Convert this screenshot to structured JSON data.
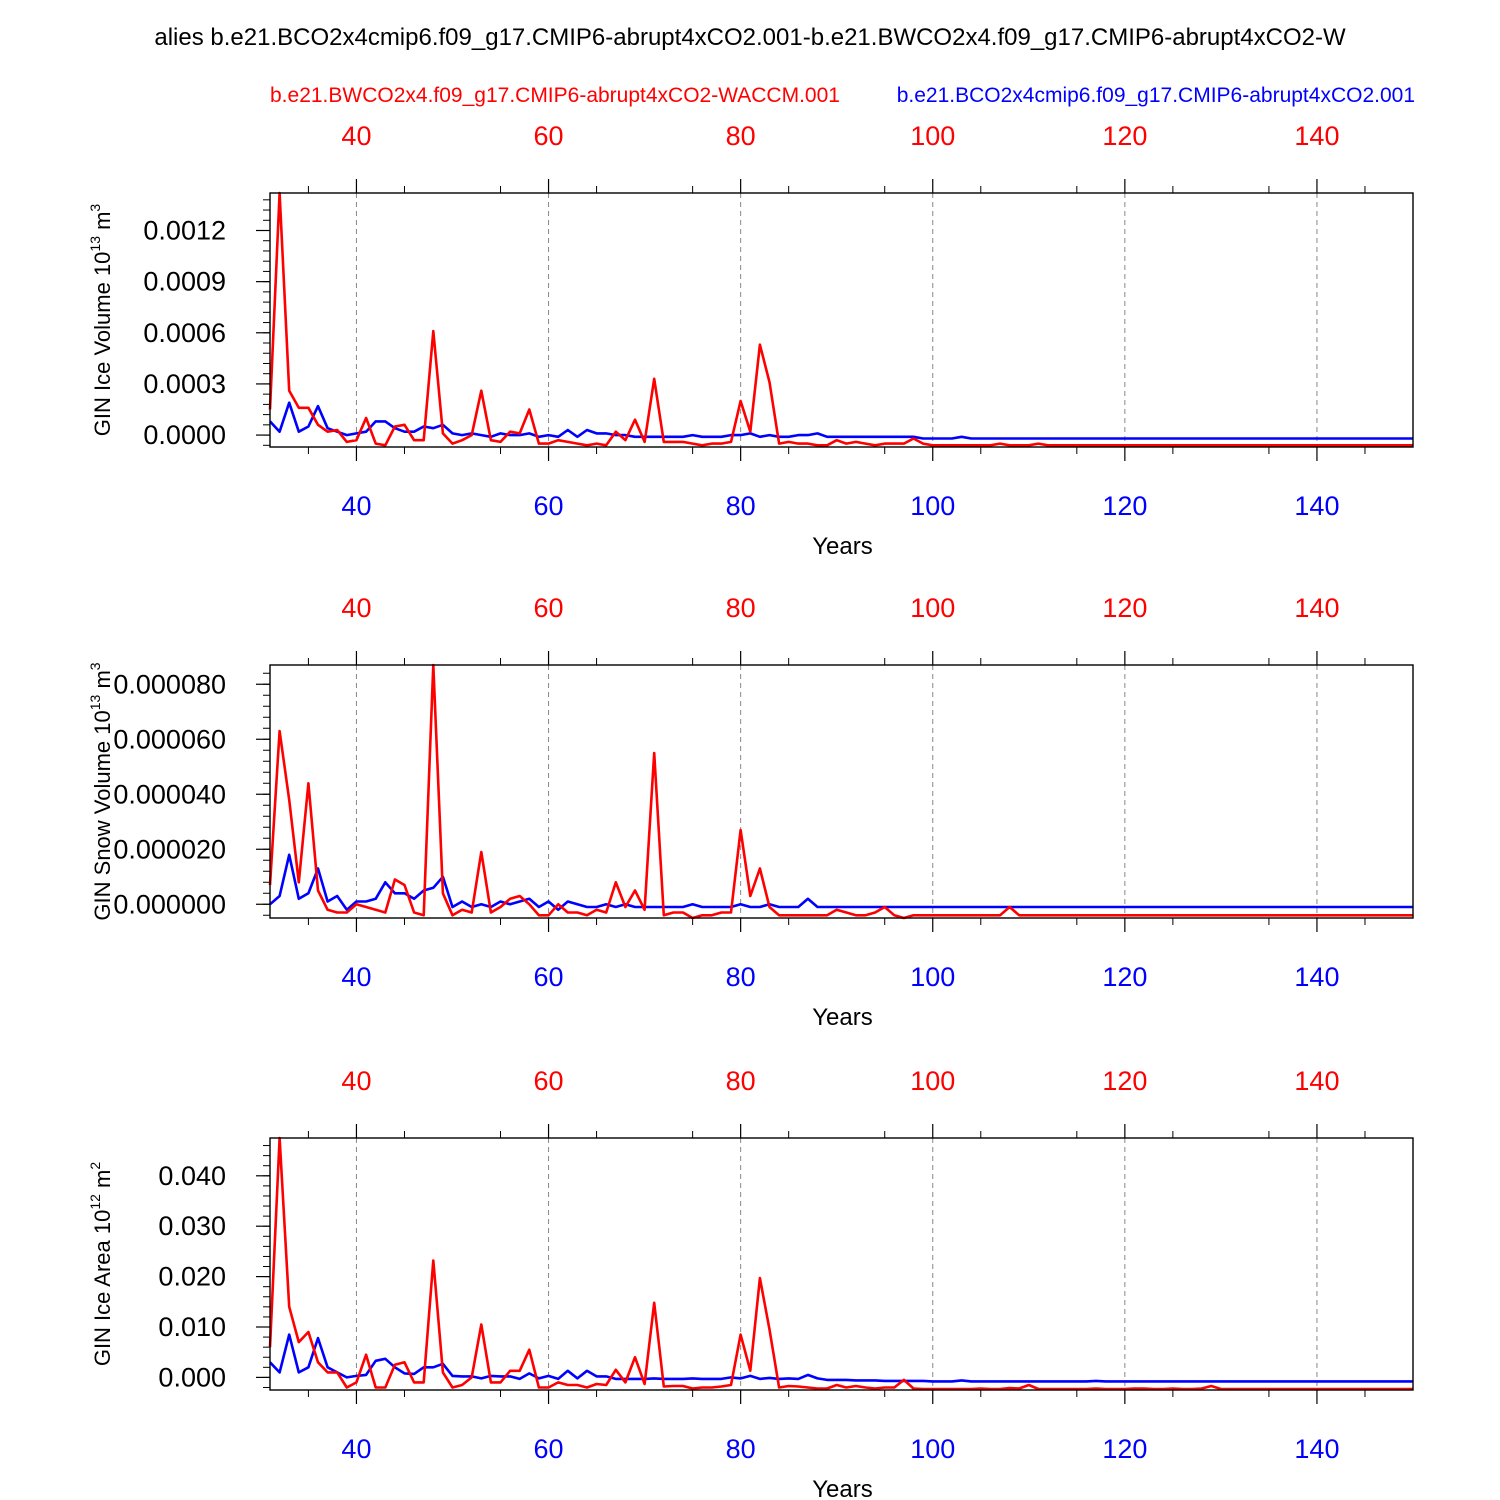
{
  "figure": {
    "title": "alies b.e21.BCO2x4cmip6.f09_g17.CMIP6-abrupt4xCO2.001-b.e21.BWCO2x4.f09_g17.CMIP6-abrupt4xCO2-W",
    "legend_red": "b.e21.BWCO2x4.f09_g17.CMIP6-abrupt4xCO2-WACCM.001",
    "legend_blue": "b.e21.BCO2x4cmip6.f09_g17.CMIP6-abrupt4xCO2.001"
  },
  "colors": {
    "red": "#ff0000",
    "blue": "#0000ff",
    "text": "#000000",
    "grid": "#888888"
  },
  "chart_data": [
    {
      "type": "line",
      "ylabel": "GIN Ice Volume",
      "ylabel_unit_base": "10",
      "ylabel_unit_exp": "13",
      "ylabel_unit_tail": "m",
      "ylabel_unit_pow": "3",
      "xlabel": "Years",
      "xlim": [
        31,
        150
      ],
      "ylim": [
        -7e-05,
        0.00142
      ],
      "x_ticks": [
        "40",
        "60",
        "80",
        "100",
        "120",
        "140"
      ],
      "y_ticks": [
        {
          "v": 0.0,
          "label": "0.0000"
        },
        {
          "v": 0.0003,
          "label": "0.0003"
        },
        {
          "v": 0.0006,
          "label": "0.0006"
        },
        {
          "v": 0.0009,
          "label": "0.0009"
        },
        {
          "v": 0.0012,
          "label": "0.0012"
        }
      ],
      "grid_x": true,
      "series": [
        {
          "color": "red",
          "start_x": 31,
          "values": [
            0.00015,
            0.00142,
            0.00026,
            0.00016,
            0.00016,
            6e-05,
            2e-05,
            3e-05,
            -4e-05,
            -3e-05,
            0.0001,
            -5e-05,
            -6e-05,
            5e-05,
            6e-05,
            -3e-05,
            -3e-05,
            0.00061,
            1e-05,
            -5e-05,
            -3e-05,
            0.0,
            0.00026,
            -3e-05,
            -4e-05,
            2e-05,
            1e-05,
            0.00015,
            -5e-05,
            -5e-05,
            -3e-05,
            -4e-05,
            -5e-05,
            -6e-05,
            -5e-05,
            -6e-05,
            2e-05,
            -3e-05,
            9e-05,
            -4e-05,
            0.00033,
            -4e-05,
            -4e-05,
            -4e-05,
            -5e-05,
            -6e-05,
            -5e-05,
            -5e-05,
            -4e-05,
            0.0002,
            2e-05,
            0.00053,
            0.00031,
            -5e-05,
            -4e-05,
            -5e-05,
            -5e-05,
            -6e-05,
            -6e-05,
            -3e-05,
            -5e-05,
            -4e-05,
            -5e-05,
            -6e-05,
            -5e-05,
            -5e-05,
            -5e-05,
            -2e-05,
            -5e-05,
            -6e-05,
            -6e-05,
            -6e-05,
            -6e-05,
            -6e-05,
            -6e-05,
            -6e-05,
            -5e-05,
            -6e-05,
            -6e-05,
            -6e-05,
            -5e-05,
            -6e-05,
            -6e-05,
            -6e-05,
            -6e-05,
            -6e-05,
            -6e-05,
            -6e-05,
            -6e-05,
            -6e-05,
            -6e-05,
            -6e-05,
            -6e-05,
            -6e-05,
            -6e-05,
            -6e-05,
            -6e-05,
            -6e-05,
            -6e-05,
            -6e-05,
            -6e-05,
            -6e-05,
            -6e-05,
            -6e-05,
            -6e-05,
            -6e-05,
            -6e-05,
            -6e-05,
            -6e-05,
            -6e-05,
            -6e-05,
            -6e-05,
            -6e-05,
            -6e-05,
            -6e-05,
            -6e-05,
            -6e-05,
            -6e-05,
            -6e-05,
            -6e-05
          ]
        },
        {
          "color": "blue",
          "start_x": 31,
          "values": [
            8e-05,
            2e-05,
            0.00019,
            2e-05,
            5e-05,
            0.00017,
            4e-05,
            2e-05,
            0.0,
            1e-05,
            2e-05,
            8e-05,
            8e-05,
            4e-05,
            2e-05,
            2e-05,
            5e-05,
            4e-05,
            6e-05,
            1e-05,
            0.0,
            1e-05,
            0.0,
            -1e-05,
            1e-05,
            0.0,
            0.0,
            1e-05,
            -1e-05,
            0.0,
            -1e-05,
            3e-05,
            -1e-05,
            3e-05,
            1e-05,
            1e-05,
            0.0,
            0.0,
            -1e-05,
            -1e-05,
            -1e-05,
            -1e-05,
            -1e-05,
            -1e-05,
            0.0,
            -1e-05,
            -1e-05,
            -1e-05,
            0.0,
            0.0,
            1e-05,
            -1e-05,
            0.0,
            -1e-05,
            -1e-05,
            0.0,
            0.0,
            1e-05,
            -1e-05,
            -1e-05,
            -1e-05,
            -1e-05,
            -1e-05,
            -1e-05,
            -1e-05,
            -1e-05,
            -1e-05,
            -1e-05,
            -2e-05,
            -2e-05,
            -2e-05,
            -2e-05,
            -1e-05,
            -2e-05,
            -2e-05,
            -2e-05,
            -2e-05,
            -2e-05,
            -2e-05,
            -2e-05,
            -2e-05,
            -2e-05,
            -2e-05,
            -2e-05,
            -2e-05,
            -2e-05,
            -2e-05,
            -2e-05,
            -2e-05,
            -2e-05,
            -2e-05,
            -2e-05,
            -2e-05,
            -2e-05,
            -2e-05,
            -2e-05,
            -2e-05,
            -2e-05,
            -2e-05,
            -2e-05,
            -2e-05,
            -2e-05,
            -2e-05,
            -2e-05,
            -2e-05,
            -2e-05,
            -2e-05,
            -2e-05,
            -2e-05,
            -2e-05,
            -2e-05,
            -2e-05,
            -2e-05,
            -2e-05,
            -2e-05,
            -2e-05,
            -2e-05,
            -2e-05,
            -2e-05,
            -2e-05
          ]
        }
      ]
    },
    {
      "type": "line",
      "ylabel": "GIN Snow Volume",
      "ylabel_unit_base": "10",
      "ylabel_unit_exp": "13",
      "ylabel_unit_tail": "m",
      "ylabel_unit_pow": "3",
      "xlabel": "Years",
      "xlim": [
        31,
        150
      ],
      "ylim": [
        -5e-06,
        8.7e-05
      ],
      "x_ticks": [
        "40",
        "60",
        "80",
        "100",
        "120",
        "140"
      ],
      "y_ticks": [
        {
          "v": 0.0,
          "label": "0.000000"
        },
        {
          "v": 2e-05,
          "label": "0.000020"
        },
        {
          "v": 4e-05,
          "label": "0.000040"
        },
        {
          "v": 6e-05,
          "label": "0.000060"
        },
        {
          "v": 8e-05,
          "label": "0.000080"
        }
      ],
      "grid_x": true,
      "series": [
        {
          "color": "red",
          "start_x": 31,
          "values": [
            7e-06,
            6.3e-05,
            3.8e-05,
            8e-06,
            4.4e-05,
            5e-06,
            -2e-06,
            -3e-06,
            -3e-06,
            0.0,
            -1e-06,
            -2e-06,
            -3e-06,
            9e-06,
            7e-06,
            -3e-06,
            -4e-06,
            8.7e-05,
            4e-06,
            -4e-06,
            -2e-06,
            -3e-06,
            1.9e-05,
            -3e-06,
            -1e-06,
            2e-06,
            3e-06,
            0.0,
            -4e-06,
            -4e-06,
            0.0,
            -3e-06,
            -3e-06,
            -4e-06,
            -2e-06,
            -3e-06,
            8e-06,
            -1e-06,
            5e-06,
            -2e-06,
            5.5e-05,
            -4e-06,
            -3e-06,
            -3e-06,
            -5e-06,
            -4e-06,
            -4e-06,
            -3e-06,
            -3e-06,
            2.7e-05,
            3e-06,
            1.3e-05,
            -1e-06,
            -4e-06,
            -4e-06,
            -4e-06,
            -4e-06,
            -4e-06,
            -4e-06,
            -2e-06,
            -3e-06,
            -4e-06,
            -4e-06,
            -3e-06,
            -1e-06,
            -4e-06,
            -5e-06,
            -4e-06,
            -4e-06,
            -4e-06,
            -4e-06,
            -4e-06,
            -4e-06,
            -4e-06,
            -4e-06,
            -4e-06,
            -4e-06,
            -1e-06,
            -4e-06,
            -4e-06,
            -4e-06,
            -4e-06,
            -4e-06,
            -4e-06,
            -4e-06,
            -4e-06,
            -4e-06,
            -4e-06,
            -4e-06,
            -4e-06,
            -4e-06,
            -4e-06,
            -4e-06,
            -4e-06,
            -4e-06,
            -4e-06,
            -4e-06,
            -4e-06,
            -4e-06,
            -4e-06,
            -4e-06,
            -4e-06,
            -4e-06,
            -4e-06,
            -4e-06,
            -4e-06,
            -4e-06,
            -4e-06,
            -4e-06,
            -4e-06,
            -4e-06,
            -4e-06,
            -4e-06,
            -4e-06,
            -4e-06,
            -4e-06,
            -4e-06,
            -4e-06,
            -4e-06,
            -4e-06
          ]
        },
        {
          "color": "blue",
          "start_x": 31,
          "values": [
            0.0,
            3e-06,
            1.8e-05,
            2e-06,
            4e-06,
            1.3e-05,
            1e-06,
            3e-06,
            -2e-06,
            1e-06,
            1e-06,
            2e-06,
            8e-06,
            4e-06,
            4e-06,
            2e-06,
            5e-06,
            6e-06,
            1e-05,
            -1e-06,
            1e-06,
            -1e-06,
            0.0,
            -1e-06,
            1e-06,
            0.0,
            1e-06,
            2e-06,
            -1e-06,
            1e-06,
            -2e-06,
            1e-06,
            0.0,
            -1e-06,
            -1e-06,
            0.0,
            -1e-06,
            0.0,
            -1e-06,
            -1e-06,
            -1e-06,
            -1e-06,
            -1e-06,
            -1e-06,
            0.0,
            -1e-06,
            -1e-06,
            -1e-06,
            -1e-06,
            0.0,
            -1e-06,
            -1e-06,
            0.0,
            -1e-06,
            -1e-06,
            -1e-06,
            2e-06,
            -1e-06,
            -1e-06,
            -1e-06,
            -1e-06,
            -1e-06,
            -1e-06,
            -1e-06,
            -1e-06,
            -1e-06,
            -1e-06,
            -1e-06,
            -1e-06,
            -1e-06,
            -1e-06,
            -1e-06,
            -1e-06,
            -1e-06,
            -1e-06,
            -1e-06,
            -1e-06,
            -1e-06,
            -1e-06,
            -1e-06,
            -1e-06,
            -1e-06,
            -1e-06,
            -1e-06,
            -1e-06,
            -1e-06,
            -1e-06,
            -1e-06,
            -1e-06,
            -1e-06,
            -1e-06,
            -1e-06,
            -1e-06,
            -1e-06,
            -1e-06,
            -1e-06,
            -1e-06,
            -1e-06,
            -1e-06,
            -1e-06,
            -1e-06,
            -1e-06,
            -1e-06,
            -1e-06,
            -1e-06,
            -1e-06,
            -1e-06,
            -1e-06,
            -1e-06,
            -1e-06,
            -1e-06,
            -1e-06,
            -1e-06,
            -1e-06,
            -1e-06,
            -1e-06,
            -1e-06,
            -1e-06,
            -1e-06,
            -1e-06
          ]
        }
      ]
    },
    {
      "type": "line",
      "ylabel": "GIN Ice Area",
      "ylabel_unit_base": "10",
      "ylabel_unit_exp": "12",
      "ylabel_unit_tail": "m",
      "ylabel_unit_pow": "2",
      "xlabel": "Years",
      "xlim": [
        31,
        150
      ],
      "ylim": [
        -0.0025,
        0.0475
      ],
      "x_ticks": [
        "40",
        "60",
        "80",
        "100",
        "120",
        "140"
      ],
      "y_ticks": [
        {
          "v": 0.0,
          "label": "0.000"
        },
        {
          "v": 0.01,
          "label": "0.010"
        },
        {
          "v": 0.02,
          "label": "0.020"
        },
        {
          "v": 0.03,
          "label": "0.030"
        },
        {
          "v": 0.04,
          "label": "0.040"
        }
      ],
      "grid_x": true,
      "series": [
        {
          "color": "red",
          "start_x": 31,
          "values": [
            0.006,
            0.0475,
            0.014,
            0.007,
            0.009,
            0.003,
            0.001,
            0.001,
            -0.002,
            -0.001,
            0.0045,
            -0.002,
            -0.002,
            0.0025,
            0.003,
            -0.001,
            -0.001,
            0.0232,
            0.001,
            -0.002,
            -0.0015,
            0.0,
            0.0105,
            -0.001,
            -0.001,
            0.0013,
            0.0013,
            0.0055,
            -0.002,
            -0.002,
            -0.001,
            -0.0015,
            -0.0015,
            -0.002,
            -0.0013,
            -0.0015,
            0.0015,
            -0.001,
            0.004,
            -0.0013,
            0.0148,
            -0.0018,
            -0.0017,
            -0.0017,
            -0.0022,
            -0.002,
            -0.002,
            -0.0018,
            -0.0015,
            0.0085,
            0.0013,
            0.0197,
            0.0095,
            -0.002,
            -0.0017,
            -0.0018,
            -0.002,
            -0.0022,
            -0.0022,
            -0.0015,
            -0.002,
            -0.0017,
            -0.002,
            -0.0022,
            -0.002,
            -0.002,
            -0.0005,
            -0.0022,
            -0.0023,
            -0.0023,
            -0.0023,
            -0.0023,
            -0.0023,
            -0.0023,
            -0.0022,
            -0.0023,
            -0.0023,
            -0.0021,
            -0.0022,
            -0.0015,
            -0.0023,
            -0.0023,
            -0.0023,
            -0.0023,
            -0.0023,
            -0.0023,
            -0.0022,
            -0.0023,
            -0.0023,
            -0.0023,
            -0.0022,
            -0.0022,
            -0.0023,
            -0.0023,
            -0.0022,
            -0.0023,
            -0.0023,
            -0.0022,
            -0.0017,
            -0.0023,
            -0.0023,
            -0.0023,
            -0.0023,
            -0.0023,
            -0.0023,
            -0.0023,
            -0.0023,
            -0.0023,
            -0.0023,
            -0.0023,
            -0.0023,
            -0.0023,
            -0.0023,
            -0.0023,
            -0.0023,
            -0.0023,
            -0.0023,
            -0.0023,
            -0.0023,
            -0.0023
          ]
        },
        {
          "color": "blue",
          "start_x": 31,
          "values": [
            0.003,
            0.001,
            0.0085,
            0.001,
            0.002,
            0.0078,
            0.002,
            0.001,
            0.0,
            0.0003,
            0.0005,
            0.0033,
            0.0037,
            0.002,
            0.0008,
            0.0007,
            0.002,
            0.002,
            0.0027,
            0.0003,
            0.0002,
            0.0002,
            -0.0002,
            0.0003,
            0.0002,
            0.0002,
            -0.0003,
            0.0008,
            -0.0002,
            0.0003,
            -0.0003,
            0.0013,
            -0.0002,
            0.0013,
            0.0002,
            0.0002,
            -0.0003,
            -0.0003,
            -0.0003,
            -0.0003,
            -0.0002,
            -0.0003,
            -0.0003,
            -0.0003,
            -0.0002,
            -0.0003,
            -0.0003,
            -0.0003,
            0.0,
            -0.0002,
            0.0003,
            -0.0003,
            -0.0001,
            -0.0003,
            -0.0002,
            -0.0003,
            0.0005,
            -0.0002,
            -0.0005,
            -0.0005,
            -0.0005,
            -0.0006,
            -0.0006,
            -0.0006,
            -0.0007,
            -0.0007,
            -0.0007,
            -0.0007,
            -0.0007,
            -0.0008,
            -0.0008,
            -0.0008,
            -0.0006,
            -0.0008,
            -0.0008,
            -0.0008,
            -0.0008,
            -0.0008,
            -0.0008,
            -0.0008,
            -0.0008,
            -0.0008,
            -0.0008,
            -0.0008,
            -0.0008,
            -0.0008,
            -0.0007,
            -0.0008,
            -0.0008,
            -0.0008,
            -0.0008,
            -0.0008,
            -0.0008,
            -0.0008,
            -0.0008,
            -0.0008,
            -0.0008,
            -0.0008,
            -0.0008,
            -0.0008,
            -0.0008,
            -0.0008,
            -0.0008,
            -0.0008,
            -0.0008,
            -0.0008,
            -0.0008,
            -0.0008,
            -0.0008,
            -0.0008,
            -0.0008,
            -0.0008,
            -0.0008,
            -0.0008,
            -0.0008,
            -0.0008,
            -0.0008,
            -0.0008,
            -0.0008,
            -0.0008
          ]
        }
      ]
    }
  ]
}
